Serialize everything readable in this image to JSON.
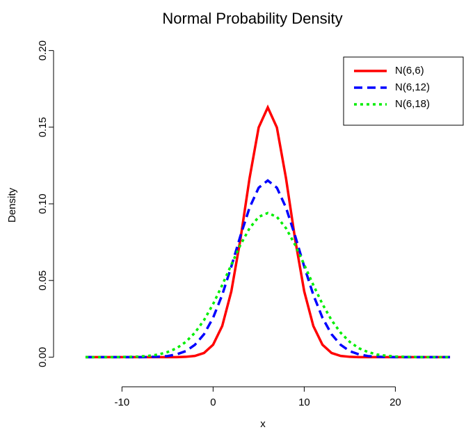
{
  "chart_data": {
    "type": "line",
    "title": "Normal Probability Density",
    "xlabel": "x",
    "ylabel": "Density",
    "x": [
      -14,
      -13,
      -12,
      -11,
      -10,
      -9,
      -8,
      -7,
      -6,
      -5,
      -4,
      -3,
      -2,
      -1,
      0,
      1,
      2,
      3,
      4,
      5,
      6,
      7,
      8,
      9,
      10,
      11,
      12,
      13,
      14,
      15,
      16,
      17,
      18,
      19,
      20,
      21,
      22,
      23,
      24,
      25,
      26
    ],
    "series": [
      {
        "name": "N(6,6)",
        "color": "#ff0000",
        "linestyle": "solid",
        "values": [
          0,
          0,
          0,
          0,
          0,
          0,
          0,
          0,
          0,
          0,
          0,
          0.0002,
          0.0008,
          0.0027,
          0.0081,
          0.0203,
          0.0429,
          0.0769,
          0.1167,
          0.1498,
          0.1629,
          0.1498,
          0.1167,
          0.0769,
          0.0429,
          0.0203,
          0.0081,
          0.0027,
          0.0008,
          0.0002,
          0,
          0,
          0,
          0,
          0,
          0,
          0,
          0,
          0,
          0,
          0
        ]
      },
      {
        "name": "N(6,12)",
        "color": "#0000ff",
        "linestyle": "dashed",
        "values": [
          0,
          0,
          0,
          0,
          0,
          0,
          0,
          0.0001,
          0.0003,
          0.0007,
          0.0018,
          0.0039,
          0.008,
          0.0149,
          0.0257,
          0.0406,
          0.0591,
          0.0791,
          0.0975,
          0.1105,
          0.1152,
          0.1105,
          0.0975,
          0.0791,
          0.0591,
          0.0406,
          0.0257,
          0.0149,
          0.008,
          0.0039,
          0.0018,
          0.0007,
          0.0003,
          0.0001,
          0,
          0,
          0,
          0,
          0,
          0,
          0
        ]
      },
      {
        "name": "N(6,18)",
        "color": "#00ee00",
        "linestyle": "dotted",
        "values": [
          0,
          0,
          0,
          0,
          0.0001,
          0.0002,
          0.0004,
          0.0009,
          0.0017,
          0.0033,
          0.0058,
          0.0099,
          0.0159,
          0.0241,
          0.0346,
          0.047,
          0.0603,
          0.0732,
          0.0841,
          0.0915,
          0.094,
          0.0915,
          0.0841,
          0.0732,
          0.0603,
          0.047,
          0.0346,
          0.0241,
          0.0159,
          0.0099,
          0.0058,
          0.0033,
          0.0017,
          0.0009,
          0.0004,
          0.0002,
          0.0001,
          0,
          0,
          0,
          0
        ]
      }
    ],
    "xlim": [
      -15.6,
      27.6
    ],
    "ylim": [
      -0.008,
      0.208
    ],
    "xticks": [
      -10,
      0,
      10,
      20
    ],
    "yticks": [
      {
        "value": 0,
        "label": "0.00"
      },
      {
        "value": 0.05,
        "label": "0.05"
      },
      {
        "value": 0.1,
        "label": "0.10"
      },
      {
        "value": 0.15,
        "label": "0.15"
      },
      {
        "value": 0.2,
        "label": "0.20"
      }
    ],
    "legend": "top-right"
  }
}
